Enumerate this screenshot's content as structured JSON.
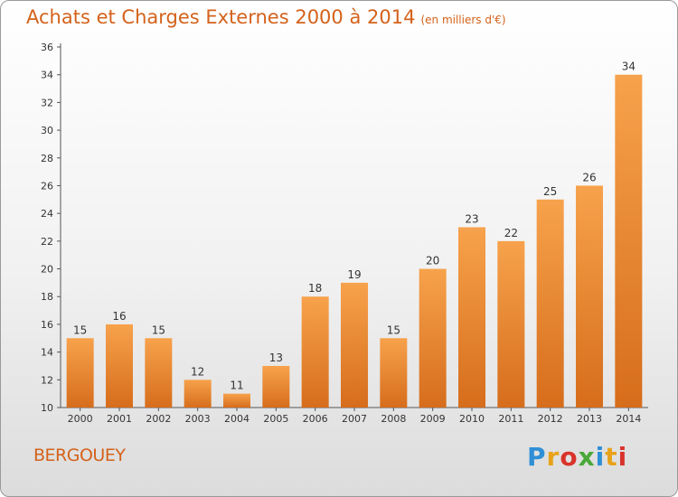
{
  "header": {
    "title": "Achats et Charges Externes 2000 à 2014",
    "unit": "(en milliers d'€)"
  },
  "commune": "BERGOUEY",
  "logo": {
    "letters": [
      "P",
      "r",
      "o",
      "x",
      "i",
      "t",
      "i"
    ],
    "colors": [
      "#2f8fd6",
      "#e8a21a",
      "#d9332b",
      "#4aa83a",
      "#2f8fd6",
      "#e8a21a",
      "#d9332b"
    ]
  },
  "colors": {
    "bar_light": "#f7a24c",
    "bar_dark": "#d66d1c",
    "title": "#d4621b"
  },
  "chart_data": {
    "type": "bar",
    "title": "Achats et Charges Externes 2000 à 2014",
    "subtitle": "(en milliers d'€)",
    "categories": [
      "2000",
      "2001",
      "2002",
      "2003",
      "2004",
      "2005",
      "2006",
      "2007",
      "2008",
      "2009",
      "2010",
      "2011",
      "2012",
      "2013",
      "2014"
    ],
    "values": [
      15,
      16,
      15,
      12,
      11,
      13,
      18,
      19,
      15,
      20,
      23,
      22,
      25,
      26,
      34
    ],
    "xlabel": "",
    "ylabel": "",
    "ylim": [
      10,
      36
    ],
    "yticks": [
      10,
      12,
      14,
      16,
      18,
      20,
      22,
      24,
      26,
      28,
      30,
      32,
      34,
      36
    ],
    "grid": false,
    "data_labels": true
  }
}
